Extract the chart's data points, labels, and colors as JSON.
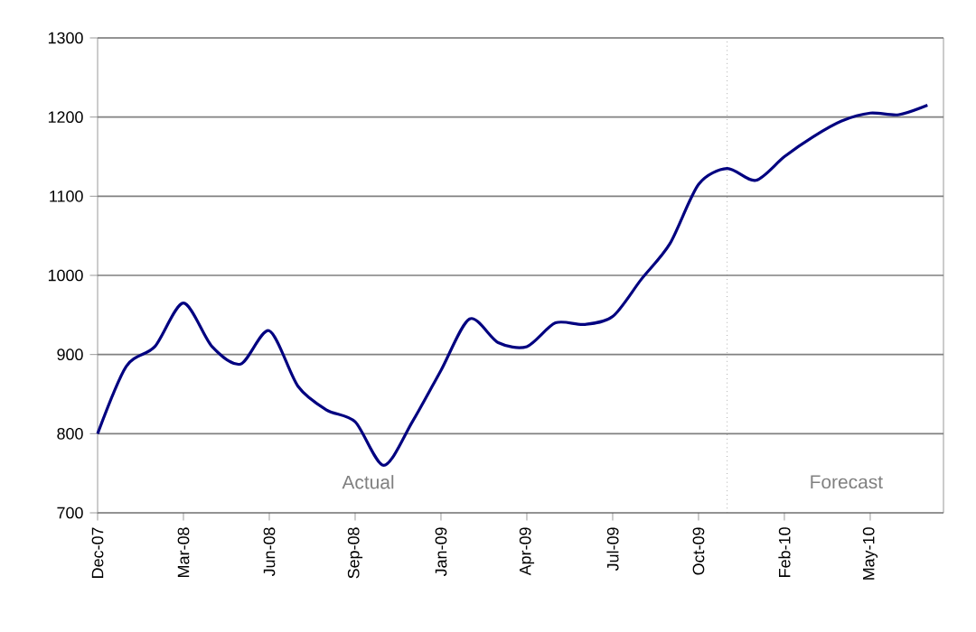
{
  "chart_data": {
    "type": "line",
    "categories": [
      "Dec-07",
      null,
      null,
      "Mar-08",
      null,
      null,
      "Jun-08",
      null,
      null,
      "Sep-08",
      null,
      null,
      "Jan-09",
      null,
      null,
      "Apr-09",
      null,
      null,
      "Jul-09",
      null,
      null,
      "Oct-09",
      null,
      null,
      "Feb-10",
      null,
      null,
      "May-10",
      null,
      null
    ],
    "series": [
      {
        "color": "#000080",
        "values": [
          800,
          885,
          910,
          965,
          910,
          888,
          930,
          860,
          830,
          815,
          760,
          815,
          880,
          945,
          915,
          910,
          940,
          938,
          948,
          995,
          1040,
          1115,
          1135,
          1120,
          1150,
          1175,
          1195,
          1205,
          1203,
          1215
        ]
      }
    ],
    "ylim": [
      700,
      1300
    ],
    "yticks": [
      700,
      800,
      900,
      1000,
      1100,
      1200,
      1300
    ],
    "grid": "y",
    "annotations": [
      "Actual",
      "Forecast"
    ]
  }
}
